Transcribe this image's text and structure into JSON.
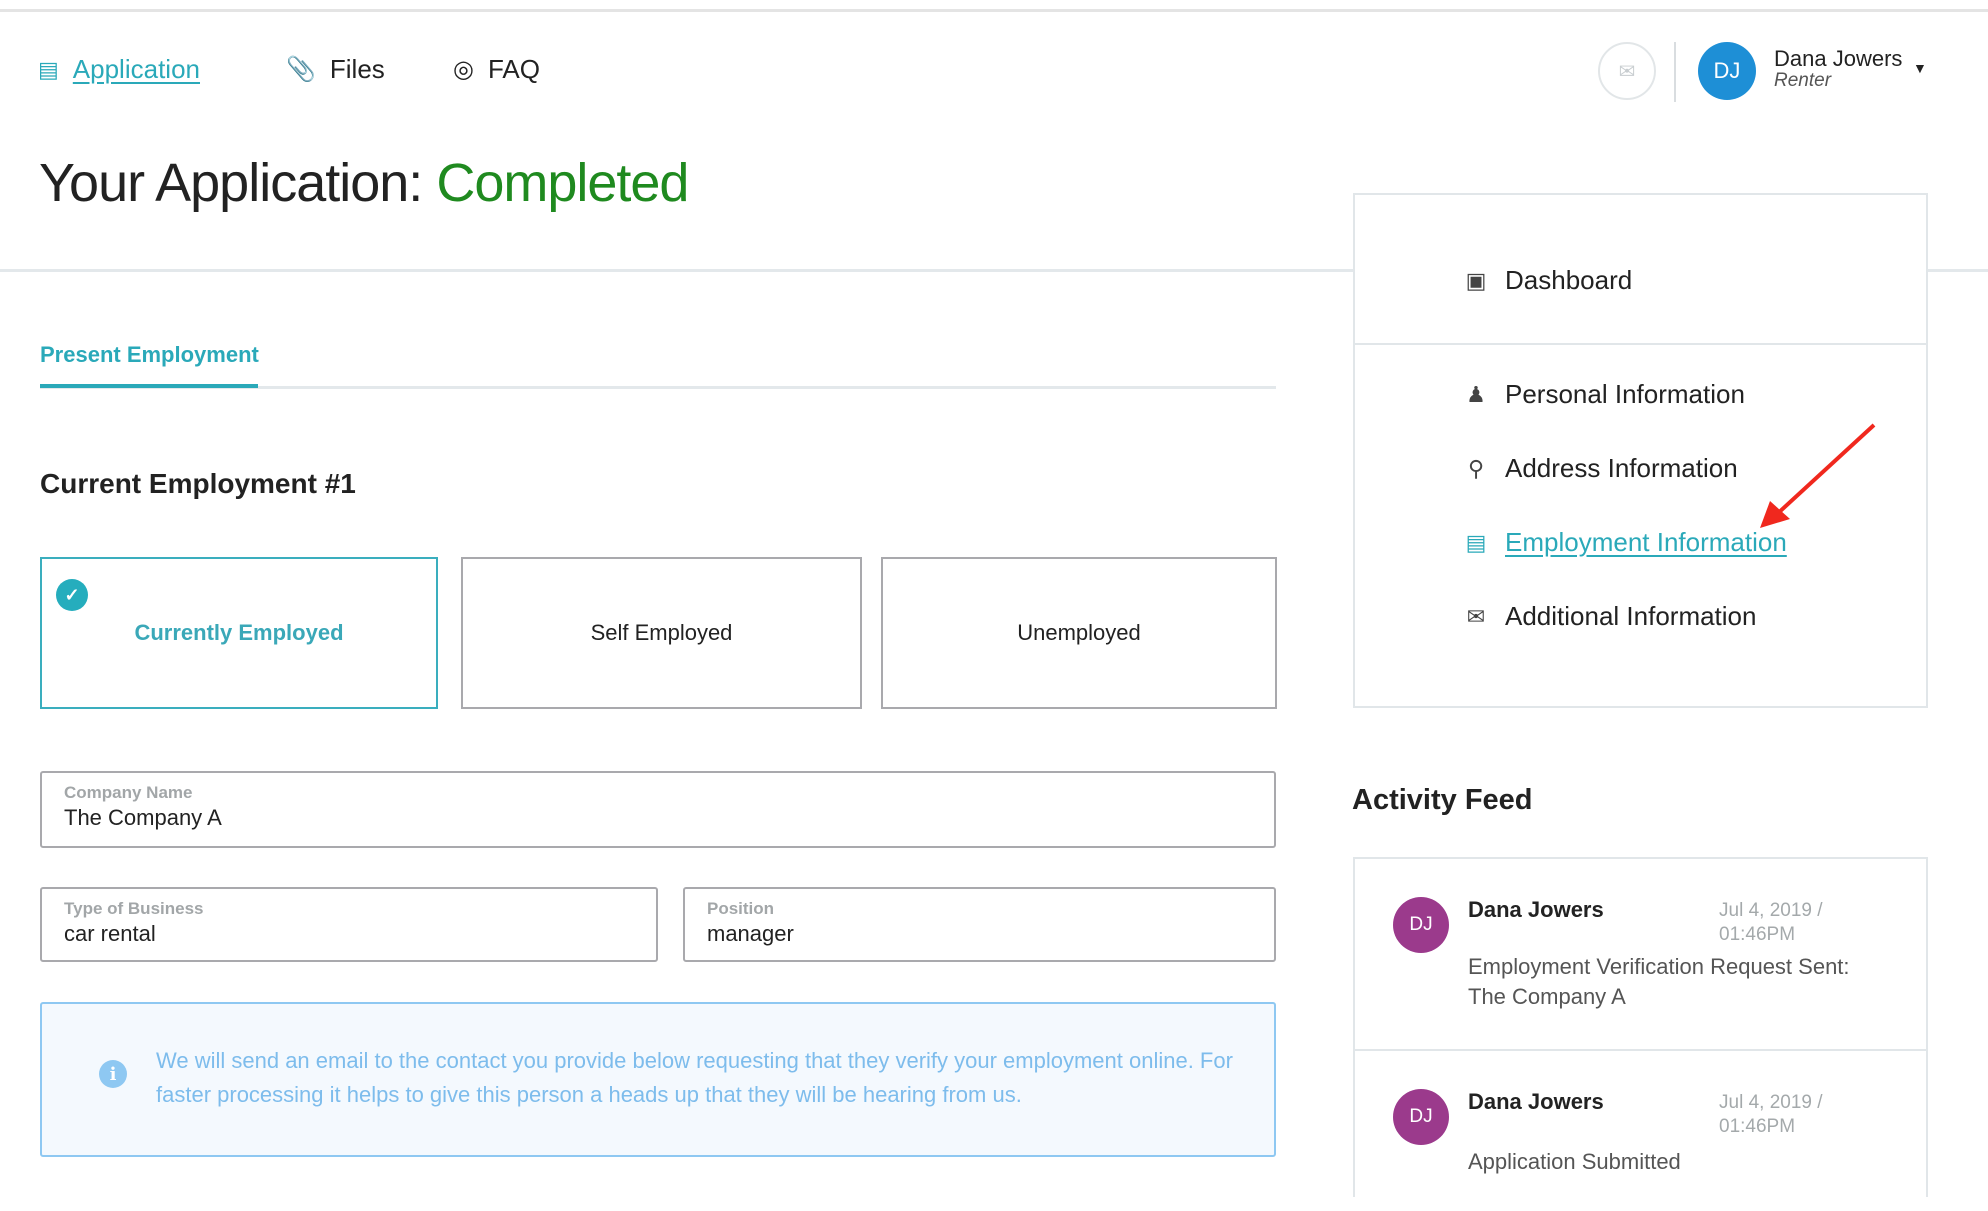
{
  "nav": {
    "items": [
      {
        "label": "Application",
        "icon": "document-icon",
        "active": true
      },
      {
        "label": "Files",
        "icon": "paperclip-icon",
        "active": false
      },
      {
        "label": "FAQ",
        "icon": "lifebuoy-icon",
        "active": false
      }
    ]
  },
  "user": {
    "initials": "DJ",
    "name": "Dana Jowers",
    "role": "Renter",
    "avatar_color": "#1e8fd6"
  },
  "page": {
    "title_prefix": "Your Application:",
    "status": "Completed",
    "status_color": "#1f8a1f"
  },
  "tabs": [
    {
      "label": "Present Employment",
      "active": true
    }
  ],
  "section": {
    "title": "Current Employment #1"
  },
  "employment_options": [
    {
      "label": "Currently Employed",
      "selected": true
    },
    {
      "label": "Self Employed",
      "selected": false
    },
    {
      "label": "Unemployed",
      "selected": false
    }
  ],
  "fields": {
    "company_name": {
      "label": "Company Name",
      "value": "The Company A"
    },
    "type_of_business": {
      "label": "Type of Business",
      "value": "car rental"
    },
    "position": {
      "label": "Position",
      "value": "manager"
    }
  },
  "info": {
    "icon": "info-icon",
    "text": "We will send an email to the contact you provide below requesting that they verify your employment online. For faster processing it helps to give this person a heads up that they will be hearing from us."
  },
  "sidebar": {
    "dashboard": {
      "label": "Dashboard",
      "icon": "inbox-icon"
    },
    "items": [
      {
        "label": "Personal Information",
        "icon": "person-icon"
      },
      {
        "label": "Address Information",
        "icon": "key-icon"
      },
      {
        "label": "Employment Information",
        "icon": "clipboard-icon",
        "active": true
      },
      {
        "label": "Additional Information",
        "icon": "envelope-open-icon"
      }
    ]
  },
  "activity": {
    "title": "Activity Feed",
    "items": [
      {
        "initials": "DJ",
        "name": "Dana Jowers",
        "date": "Jul 4, 2019 /",
        "time": "01:46PM",
        "message": "Employment Verification Request Sent: The Company A"
      },
      {
        "initials": "DJ",
        "name": "Dana Jowers",
        "date": "Jul 4, 2019 /",
        "time": "01:46PM",
        "message": "Application Submitted"
      }
    ],
    "avatar_color": "#9b3a8c"
  },
  "colors": {
    "accent": "#2aa9b9",
    "annotation_arrow": "#f0281e"
  }
}
